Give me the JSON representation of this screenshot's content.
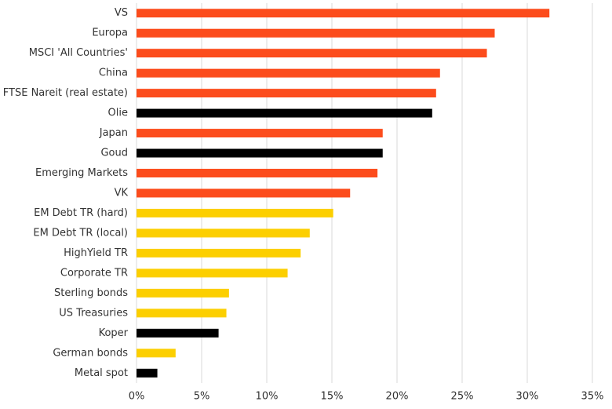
{
  "chart_data": {
    "type": "barh",
    "categories": [
      "VS",
      "Europa",
      "MSCI 'All Countries'",
      "China",
      "FTSE Nareit (real estate)",
      "Olie",
      "Japan",
      "Goud",
      "Emerging Markets",
      "VK",
      "EM Debt TR (hard)",
      "EM Debt TR (local)",
      "HighYield TR",
      "Corporate TR",
      "Sterling bonds",
      "US Treasuries",
      "Koper",
      "German bonds",
      "Metal spot"
    ],
    "values": [
      31.7,
      27.5,
      26.9,
      23.3,
      23.0,
      22.7,
      18.9,
      18.9,
      18.5,
      16.4,
      15.1,
      13.3,
      12.6,
      11.6,
      7.1,
      6.9,
      6.3,
      3.0,
      1.6
    ],
    "colors": [
      "#fc4c1c",
      "#fc4c1c",
      "#fc4c1c",
      "#fc4c1c",
      "#fc4c1c",
      "#000000",
      "#fc4c1c",
      "#000000",
      "#fc4c1c",
      "#fc4c1c",
      "#fccf00",
      "#fccf00",
      "#fccf00",
      "#fccf00",
      "#fccf00",
      "#fccf00",
      "#000000",
      "#fccf00",
      "#000000"
    ],
    "xlim": [
      0,
      35
    ],
    "xticks": [
      {
        "value": 0,
        "label": "0%"
      },
      {
        "value": 5,
        "label": "5%"
      },
      {
        "value": 10,
        "label": "10%"
      },
      {
        "value": 15,
        "label": "15%"
      },
      {
        "value": 20,
        "label": "20%"
      },
      {
        "value": 25,
        "label": "25%"
      },
      {
        "value": 30,
        "label": "30%"
      },
      {
        "value": 35,
        "label": "35%"
      }
    ],
    "grid": true
  }
}
